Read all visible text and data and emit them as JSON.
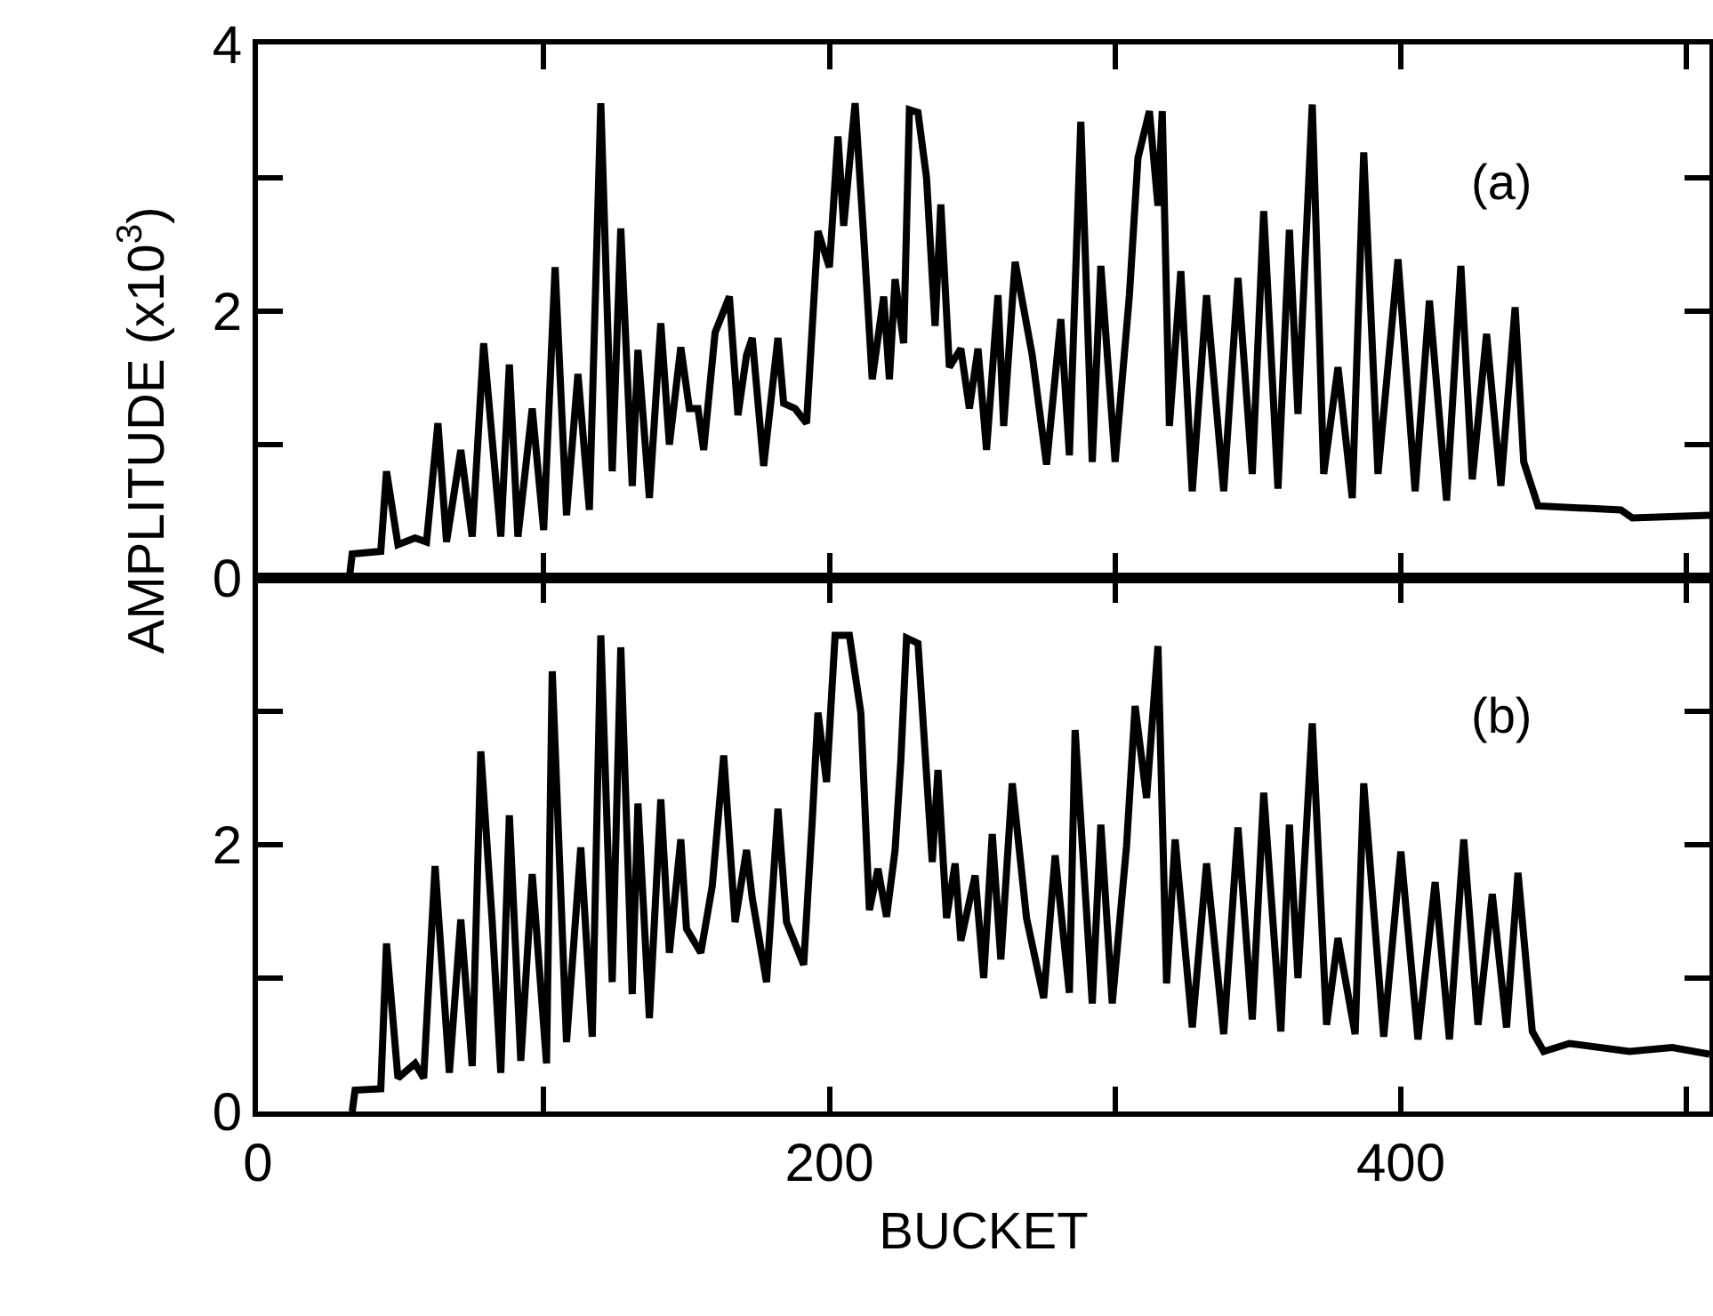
{
  "chart_data": [
    {
      "type": "line",
      "ylabel": "AMPLITUDE (x10$^{3}$)",
      "annotations": [
        "(a)"
      ],
      "xlim": [
        0,
        508
      ],
      "ylim": [
        0,
        4
      ],
      "xticks": [
        {
          "value": 0,
          "label": null
        },
        {
          "value": 100,
          "label": null
        },
        {
          "value": 200,
          "label": null
        },
        {
          "value": 300,
          "label": null
        },
        {
          "value": 400,
          "label": null
        },
        {
          "value": 500,
          "label": null
        }
      ],
      "yticks": [
        0,
        {
          "value": 1,
          "label": null
        },
        2,
        {
          "value": 3,
          "label": null
        },
        4
      ],
      "tick_labels": "y",
      "series": [
        {
          "color": "#000000",
          "x": [
            32,
            33,
            43,
            45,
            49,
            55,
            59,
            63,
            66,
            71,
            75,
            79,
            85,
            88,
            91,
            96,
            100,
            104,
            108,
            112,
            116,
            120,
            124,
            127,
            131,
            133,
            137,
            141,
            144,
            148,
            151,
            154,
            156,
            160,
            165,
            168,
            171,
            173,
            177,
            182,
            184,
            188,
            192,
            196,
            200,
            203,
            205,
            209,
            212,
            215,
            219,
            221,
            223,
            226,
            228,
            231,
            234,
            237,
            239,
            242,
            246,
            249,
            252,
            255,
            259,
            261,
            265,
            271,
            276,
            281,
            284,
            288,
            292,
            295,
            300,
            305,
            308,
            312,
            315,
            316.5,
            319,
            323,
            327,
            332,
            338,
            343,
            348,
            352,
            357,
            361,
            364,
            369,
            373,
            378,
            383,
            387,
            392,
            399,
            405,
            410,
            416,
            421,
            425,
            430,
            435,
            440,
            443,
            448,
            477,
            481,
            508
          ],
          "values": [
            0,
            0.18,
            0.2,
            0.8,
            0.25,
            0.3,
            0.27,
            1.16,
            0.27,
            0.96,
            0.31,
            1.76,
            0.31,
            1.6,
            0.31,
            1.27,
            0.36,
            2.33,
            0.47,
            1.53,
            0.51,
            3.56,
            0.8,
            2.62,
            0.69,
            1.71,
            0.6,
            1.91,
            1.0,
            1.73,
            1.27,
            1.27,
            0.96,
            1.84,
            2.11,
            1.22,
            1.67,
            1.8,
            0.84,
            1.8,
            1.31,
            1.27,
            1.16,
            2.6,
            2.33,
            3.31,
            2.64,
            3.56,
            2.56,
            1.49,
            2.11,
            1.49,
            2.24,
            1.76,
            3.51,
            3.49,
            3.0,
            1.89,
            2.8,
            1.58,
            1.72,
            1.27,
            1.72,
            0.96,
            2.12,
            1.14,
            2.37,
            1.67,
            0.85,
            1.94,
            0.92,
            3.42,
            0.87,
            2.34,
            0.87,
            2.12,
            3.15,
            3.5,
            2.79,
            3.5,
            1.14,
            2.3,
            0.65,
            2.12,
            0.65,
            2.25,
            0.78,
            2.75,
            0.67,
            2.61,
            1.23,
            3.55,
            0.78,
            1.58,
            0.6,
            3.19,
            0.78,
            2.39,
            0.65,
            2.08,
            0.58,
            2.34,
            0.74,
            1.83,
            0.69,
            2.03,
            0.87,
            0.54,
            0.51,
            0.45,
            0.47
          ]
        }
      ]
    },
    {
      "type": "line",
      "xlabel": "BUCKET",
      "annotations": [
        "(b)"
      ],
      "xlim": [
        0,
        508
      ],
      "ylim": [
        0,
        4
      ],
      "xticks": [
        0,
        {
          "value": 100,
          "label": null
        },
        200,
        {
          "value": 300,
          "label": null
        },
        400,
        {
          "value": 500,
          "label": null
        }
      ],
      "yticks": [
        0,
        {
          "value": 1,
          "label": null
        },
        2,
        {
          "value": 3,
          "label": null
        },
        {
          "value": 4,
          "label": null
        }
      ],
      "series": [
        {
          "color": "#000000",
          "x": [
            33,
            34,
            43,
            45,
            49,
            55,
            58,
            62,
            67,
            71,
            75,
            78,
            82,
            85,
            88,
            92,
            96,
            101,
            103,
            108,
            113,
            117,
            120,
            124,
            127,
            131,
            133,
            137,
            141,
            144,
            148,
            150,
            155,
            159,
            163,
            167,
            171,
            173,
            178,
            182,
            185,
            191,
            194,
            196,
            199,
            202,
            207,
            211,
            214,
            217,
            220,
            223,
            225,
            227,
            231,
            236,
            238,
            241,
            244,
            246,
            251,
            254,
            257,
            260,
            264,
            269,
            275,
            279,
            284,
            286,
            292,
            295,
            299,
            304,
            307,
            311,
            315,
            318,
            321,
            327,
            332,
            338,
            343,
            348,
            352,
            358,
            361,
            364,
            369,
            374,
            378,
            384,
            387,
            394,
            400,
            406,
            412,
            417,
            422,
            427,
            432,
            437,
            441,
            446,
            450,
            459,
            480,
            495,
            508
          ],
          "values": [
            0,
            0.16,
            0.17,
            1.26,
            0.25,
            0.36,
            0.25,
            1.84,
            0.29,
            1.44,
            0.34,
            2.7,
            1.42,
            0.29,
            2.22,
            0.38,
            1.78,
            0.36,
            3.3,
            0.52,
            1.98,
            0.56,
            3.57,
            0.97,
            3.48,
            0.88,
            2.31,
            0.7,
            2.34,
            1.19,
            2.04,
            1.37,
            1.19,
            1.69,
            2.67,
            1.42,
            1.96,
            1.6,
            0.97,
            2.27,
            1.42,
            1.1,
            2.18,
            2.99,
            2.47,
            3.57,
            3.57,
            2.99,
            1.51,
            1.82,
            1.46,
            1.96,
            2.63,
            3.55,
            3.51,
            1.87,
            2.56,
            1.45,
            1.86,
            1.28,
            1.77,
            1.0,
            2.08,
            1.14,
            2.46,
            1.45,
            0.85,
            1.92,
            0.89,
            2.86,
            0.81,
            2.15,
            0.81,
            1.99,
            3.04,
            2.35,
            3.49,
            0.96,
            2.04,
            0.63,
            1.86,
            0.58,
            2.13,
            0.69,
            2.39,
            0.6,
            2.15,
            1.0,
            2.91,
            0.65,
            1.3,
            0.58,
            2.46,
            0.56,
            1.95,
            0.54,
            1.72,
            0.54,
            2.04,
            0.65,
            1.63,
            0.63,
            1.79,
            0.6,
            0.45,
            0.51,
            0.45,
            0.48,
            0.43
          ]
        }
      ]
    }
  ]
}
